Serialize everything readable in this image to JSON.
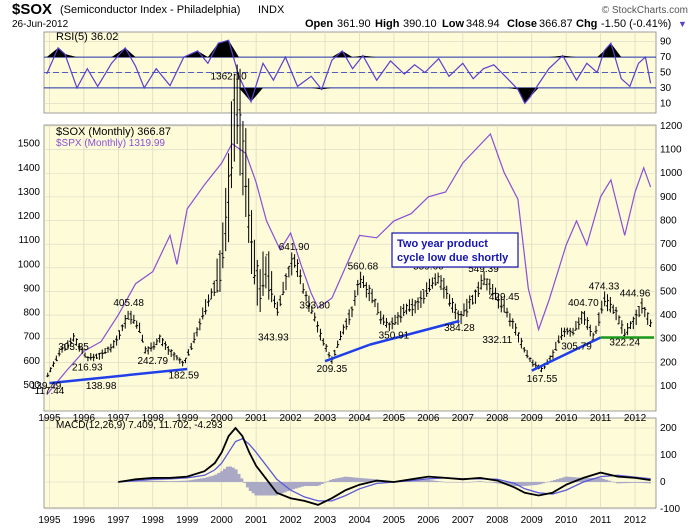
{
  "header": {
    "symbol": "$SOX",
    "name": "(Semiconductor Index - Philadelphia)",
    "exchange": "INDX",
    "watermark": "© StockCharts.com",
    "date": "26-Jun-2012",
    "open_label": "Open",
    "open_value": "361.90",
    "high_label": "High",
    "high_value": "390.10",
    "low_label": "Low",
    "low_value": "348.94",
    "close_label": "Close",
    "close_value": "366.87",
    "chg_label": "Chg",
    "chg_value": "-1.50 (-0.41%)",
    "chg_arrow": "▼"
  },
  "colors": {
    "panel_bg": "#fdfbd8",
    "grid": "#d9d7c4",
    "price": "#000000",
    "spx": "#8a4fd6",
    "rsi": "#5a3fd0",
    "trend_blue": "#1f3fe8",
    "trend_green": "#1b9a1b",
    "macd_line": "#000000",
    "macd_signal": "#5a5ad6",
    "histogram": "#a9a9c6",
    "annotation_text": "#1515b0"
  },
  "chart_data": [
    {
      "type": "line",
      "panel": "RSI",
      "title": "RSI(5) 36.02",
      "ylim": [
        0,
        100
      ],
      "yticks": [
        10,
        30,
        50,
        70,
        90
      ],
      "overbought": 70,
      "oversold": 30,
      "x": [
        1994.92,
        1995.25,
        1995.45,
        1995.8,
        1996.1,
        1996.4,
        1996.8,
        1997.2,
        1997.5,
        1997.75,
        1998.1,
        1998.5,
        1998.9,
        1999.3,
        1999.6,
        1999.9,
        2000.2,
        2000.5,
        2000.85,
        2001.2,
        2001.5,
        2001.85,
        2002.2,
        2002.6,
        2002.9,
        2003.2,
        2003.5,
        2003.8,
        2004.1,
        2004.5,
        2004.9,
        2005.3,
        2005.6,
        2005.9,
        2006.3,
        2006.6,
        2007.0,
        2007.3,
        2007.6,
        2007.9,
        2008.3,
        2008.6,
        2008.8,
        2008.95,
        2009.2,
        2009.5,
        2009.9,
        2010.3,
        2010.6,
        2010.9,
        2011.1,
        2011.3,
        2011.6,
        2011.85,
        2012.1,
        2012.3,
        2012.45
      ],
      "series": [
        {
          "values": [
            48,
            82,
            74,
            30,
            55,
            32,
            62,
            82,
            58,
            30,
            55,
            33,
            70,
            78,
            62,
            88,
            92,
            45,
            12,
            62,
            40,
            70,
            32,
            45,
            28,
            66,
            78,
            55,
            72,
            40,
            65,
            48,
            60,
            50,
            68,
            45,
            62,
            42,
            55,
            60,
            42,
            28,
            10,
            18,
            35,
            55,
            72,
            40,
            62,
            50,
            78,
            88,
            42,
            32,
            62,
            70,
            36
          ]
        }
      ]
    },
    {
      "type": "line",
      "panel": "Price",
      "title": "$SOX (Monthly) 366.87",
      "comparison_title": "$SPX (Monthly) 1319.99",
      "yticks_right": [
        100,
        200,
        300,
        400,
        500,
        600,
        700,
        800,
        900,
        1000,
        1100,
        1200
      ],
      "yticks_left": [
        500,
        600,
        700,
        800,
        900,
        1000,
        1100,
        1200,
        1300,
        1400,
        1500
      ],
      "xlabels": [
        "1995",
        "1996",
        "1997",
        "1998",
        "1999",
        "2000",
        "2001",
        "2002",
        "2003",
        "2004",
        "2005",
        "2006",
        "2007",
        "2008",
        "2009",
        "2010",
        "2011",
        "2012"
      ],
      "series": [
        {
          "name": "$SOX (Monthly) 366.87",
          "x": [
            1994.92,
            1995.3,
            1995.7,
            1996.1,
            1996.5,
            1996.9,
            1997.3,
            1997.6,
            1997.8,
            1998.2,
            1998.5,
            1998.9,
            1999.2,
            1999.5,
            1999.8,
            2000.0,
            2000.2,
            2000.4,
            2000.7,
            2000.9,
            2001.1,
            2001.3,
            2001.6,
            2001.9,
            2002.1,
            2002.4,
            2002.7,
            2002.9,
            2003.2,
            2003.5,
            2003.8,
            2004.0,
            2004.3,
            2004.6,
            2004.9,
            2005.3,
            2005.7,
            2006.0,
            2006.3,
            2006.6,
            2006.9,
            2007.3,
            2007.6,
            2007.9,
            2008.2,
            2008.5,
            2008.8,
            2009.0,
            2009.3,
            2009.6,
            2009.9,
            2010.2,
            2010.5,
            2010.8,
            2011.1,
            2011.4,
            2011.7,
            2012.0,
            2012.2,
            2012.45
          ],
          "values": [
            139,
            240,
            304,
            217,
            230,
            280,
            405,
            350,
            243,
            300,
            245,
            190,
            300,
            420,
            520,
            640,
            900,
            1362,
            980,
            650,
            510,
            600,
            420,
            560,
            642,
            500,
            394,
            300,
            209,
            330,
            420,
            560,
            500,
            400,
            350,
            420,
            445,
            520,
            560,
            470,
            384,
            470,
            549,
            500,
            429,
            350,
            250,
            200,
            168,
            230,
            330,
            330,
            405,
            300,
            474,
            420,
            322,
            380,
            445,
            367
          ]
        },
        {
          "name": "$SPX (Monthly) 1319.99",
          "x": [
            1994.92,
            1995.5,
            1996.0,
            1996.5,
            1997.0,
            1997.5,
            1998.0,
            1998.5,
            1998.7,
            1999.0,
            1999.5,
            2000.0,
            2000.3,
            2000.7,
            2001.0,
            2001.3,
            2001.7,
            2002.0,
            2002.3,
            2002.6,
            2002.8,
            2003.2,
            2003.6,
            2004.0,
            2004.5,
            2005.0,
            2005.5,
            2006.0,
            2006.5,
            2007.0,
            2007.4,
            2007.8,
            2008.2,
            2008.6,
            2008.9,
            2009.2,
            2009.5,
            2010.0,
            2010.3,
            2010.6,
            2011.0,
            2011.3,
            2011.7,
            2012.0,
            2012.25,
            2012.45
          ],
          "values": [
            460,
            560,
            640,
            680,
            790,
            920,
            970,
            1120,
            1000,
            1230,
            1330,
            1420,
            1500,
            1460,
            1340,
            1180,
            1060,
            1130,
            1000,
            880,
            820,
            860,
            990,
            1120,
            1110,
            1180,
            1210,
            1280,
            1300,
            1420,
            1480,
            1540,
            1380,
            1270,
            900,
            730,
            850,
            1080,
            1180,
            1080,
            1280,
            1350,
            1120,
            1300,
            1400,
            1320
          ]
        }
      ],
      "annotations": [
        {
          "text": "1362.10",
          "x": 2000.2,
          "y": 1362
        },
        {
          "text": "641.90",
          "x": 2002.1,
          "y": 642
        },
        {
          "text": "560.68",
          "x": 2004.1,
          "y": 560
        },
        {
          "text": "559.60",
          "x": 2006.0,
          "y": 560
        },
        {
          "text": "549.39",
          "x": 2007.6,
          "y": 549
        },
        {
          "text": "474.33",
          "x": 2011.1,
          "y": 474
        },
        {
          "text": "444.96",
          "x": 2012.0,
          "y": 445
        },
        {
          "text": "429.45",
          "x": 2008.2,
          "y": 429
        },
        {
          "text": "405.48",
          "x": 1997.3,
          "y": 405
        },
        {
          "text": "404.70",
          "x": 2010.5,
          "y": 405
        },
        {
          "text": "393.80",
          "x": 2002.7,
          "y": 394
        },
        {
          "text": "384.28",
          "x": 2006.9,
          "y": 384
        },
        {
          "text": "350.91",
          "x": 2005.0,
          "y": 351
        },
        {
          "text": "343.93",
          "x": 2001.5,
          "y": 344
        },
        {
          "text": "332.11",
          "x": 2008.0,
          "y": 332
        },
        {
          "text": "322.24",
          "x": 2011.7,
          "y": 322
        },
        {
          "text": "305.79",
          "x": 2010.3,
          "y": 306
        },
        {
          "text": "303.85",
          "x": 1995.7,
          "y": 304
        },
        {
          "text": "242.79",
          "x": 1998.0,
          "y": 243
        },
        {
          "text": "216.93",
          "x": 1996.1,
          "y": 217
        },
        {
          "text": "209.35",
          "x": 2003.2,
          "y": 209
        },
        {
          "text": "182.59",
          "x": 1998.9,
          "y": 183
        },
        {
          "text": "167.55",
          "x": 2009.3,
          "y": 168
        },
        {
          "text": "139.49",
          "x": 1994.9,
          "y": 139
        },
        {
          "text": "138.98",
          "x": 1996.5,
          "y": 139
        },
        {
          "text": "117.44",
          "x": 1995.0,
          "y": 117
        }
      ],
      "callout": {
        "line1": "Two year product",
        "line2": "cycle low due shortly"
      }
    },
    {
      "type": "line",
      "panel": "MACD",
      "title": "MACD(12,26,9) 7.409, 11.702, -4.293",
      "ylim": [
        -100,
        200
      ],
      "yticks": [
        -100,
        0,
        100,
        200
      ],
      "x": [
        1997.0,
        1997.5,
        1998.0,
        1998.5,
        1999.0,
        1999.5,
        1999.8,
        2000.0,
        2000.2,
        2000.4,
        2000.6,
        2000.8,
        2001.0,
        2001.3,
        2001.6,
        2002.0,
        2002.4,
        2002.8,
        2003.2,
        2003.6,
        2004.0,
        2004.5,
        2005.0,
        2005.5,
        2006.0,
        2006.5,
        2007.0,
        2007.5,
        2008.0,
        2008.5,
        2008.8,
        2009.2,
        2009.6,
        2010.0,
        2010.5,
        2011.0,
        2011.5,
        2012.0,
        2012.45
      ],
      "series": [
        {
          "name": "MACD",
          "values": [
            0,
            10,
            15,
            15,
            20,
            40,
            70,
            110,
            170,
            200,
            170,
            110,
            60,
            10,
            -40,
            -60,
            -70,
            -85,
            -60,
            -30,
            -10,
            5,
            0,
            10,
            20,
            15,
            10,
            15,
            5,
            -20,
            -40,
            -50,
            -40,
            -10,
            15,
            35,
            20,
            15,
            7
          ]
        },
        {
          "name": "Signal",
          "values": [
            0,
            5,
            10,
            12,
            15,
            25,
            45,
            70,
            110,
            150,
            160,
            140,
            110,
            60,
            10,
            -30,
            -55,
            -70,
            -70,
            -50,
            -25,
            -5,
            0,
            5,
            12,
            15,
            12,
            12,
            10,
            -5,
            -25,
            -40,
            -45,
            -30,
            0,
            20,
            25,
            18,
            12
          ]
        }
      ]
    }
  ]
}
